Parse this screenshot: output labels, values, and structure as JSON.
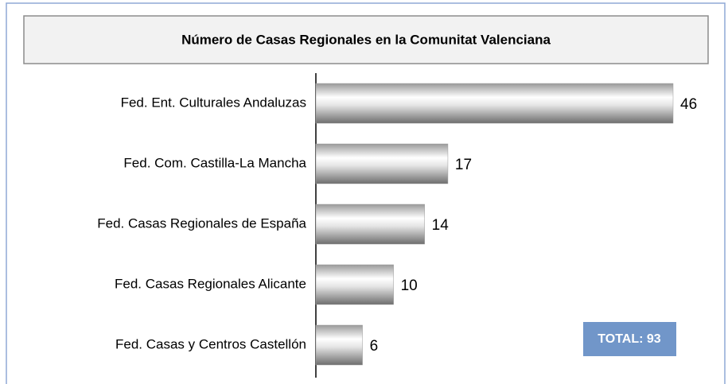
{
  "chart_data": {
    "type": "hbar",
    "title": "Número de Casas Regionales en la Comunitat Valenciana",
    "categories": [
      "Fed. Ent. Culturales Andaluzas",
      "Fed. Com. Castilla-La Mancha",
      "Fed. Casas Regionales de España",
      "Fed. Casas Regionales Alicante",
      "Fed. Casas y Centros Castellón"
    ],
    "values": [
      46,
      17,
      14,
      10,
      6
    ],
    "color": "#9a9a9a",
    "annotation": "TOTAL: 93"
  }
}
